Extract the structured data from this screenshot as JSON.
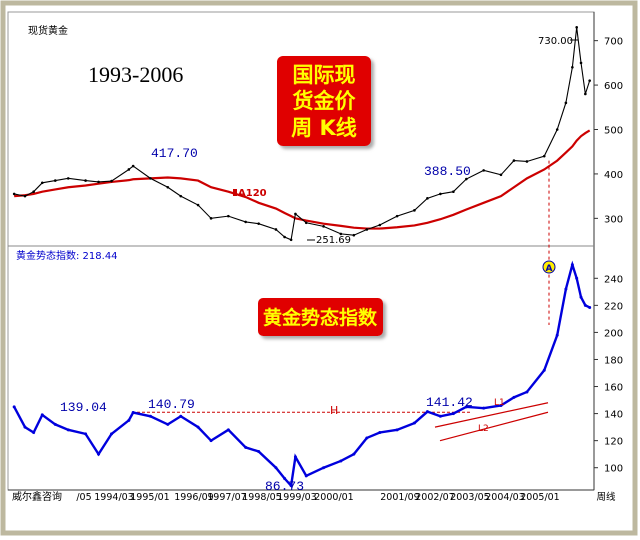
{
  "top_chart": {
    "instrument_label": "现货黄金",
    "period_text": "1993-2006",
    "title_box": [
      "国际现",
      "货金价",
      "周 K线"
    ],
    "ma_label": "A120",
    "annotations": {
      "high_1996": "417.70",
      "low_1999": "251.69",
      "mid_2003": "388.50",
      "high_2006": "730.00"
    },
    "y_ticks": [
      300,
      400,
      500,
      600,
      700
    ]
  },
  "bottom_chart": {
    "header_text": "黄金势态指数: 218.44",
    "title_box": "黄金势态指数",
    "annotations": {
      "start": "139.04",
      "mid_1996": "140.79",
      "low": "86.73",
      "high_2003": "141.42"
    },
    "h_label": "H",
    "l1_label": "L1",
    "l2_label": "L2",
    "marker_label": "A",
    "y_ticks": [
      100,
      120,
      140,
      160,
      180,
      200,
      220,
      240
    ]
  },
  "x_axis": {
    "source_label": "威尔鑫咨询",
    "ticks": [
      "/05",
      "1994/03",
      "1995/01",
      "1996/09",
      "1997/07",
      "1998/05",
      "1999/03",
      "2000/01",
      "2001/09",
      "2002/07",
      "2003/05",
      "2004/03",
      "2005/01",
      "周线"
    ]
  },
  "colors": {
    "price": "#000000",
    "ma": "#cc0000",
    "index": "#0000dd",
    "title_bg": "#e00000",
    "title_text": "#ffff00",
    "annotation_text": "#0000aa",
    "h_line": "#cc0000"
  },
  "chart_data": [
    {
      "type": "line",
      "title": "国际现货金价周 K线",
      "xlabel": "",
      "ylabel": "",
      "ylim": [
        240,
        760
      ],
      "x": [
        1993.35,
        1993.6,
        1993.8,
        1994.0,
        1994.3,
        1994.6,
        1995.0,
        1995.3,
        1995.6,
        1996.0,
        1996.1,
        1996.5,
        1996.9,
        1997.2,
        1997.6,
        1997.9,
        1998.3,
        1998.7,
        1999.0,
        1999.4,
        1999.6,
        1999.75,
        1999.85,
        2000.1,
        2000.5,
        2000.9,
        2001.2,
        2001.5,
        2001.8,
        2002.2,
        2002.6,
        2002.9,
        2003.2,
        2003.5,
        2003.8,
        2004.2,
        2004.6,
        2004.9,
        2005.2,
        2005.6,
        2005.9,
        2006.1,
        2006.25,
        2006.35,
        2006.45,
        2006.55,
        2006.65
      ],
      "series": [
        {
          "name": "现货黄金",
          "values": [
            355,
            350,
            360,
            380,
            385,
            390,
            385,
            382,
            384,
            410,
            417.7,
            390,
            370,
            350,
            330,
            300,
            305,
            292,
            288,
            275,
            258,
            251.69,
            310,
            290,
            282,
            265,
            262,
            275,
            285,
            305,
            318,
            345,
            355,
            360,
            388.5,
            408,
            398,
            430,
            428,
            440,
            500,
            560,
            640,
            730,
            650,
            580,
            610
          ]
        },
        {
          "name": "MA120",
          "values": [
            350,
            352,
            355,
            360,
            365,
            370,
            374,
            378,
            382,
            386,
            388,
            390,
            392,
            390,
            385,
            370,
            360,
            348,
            335,
            322,
            312,
            305,
            300,
            295,
            288,
            283,
            279,
            277,
            277,
            280,
            284,
            290,
            298,
            308,
            320,
            335,
            350,
            370,
            390,
            410,
            430,
            448,
            462,
            475,
            485,
            492,
            498
          ]
        }
      ]
    },
    {
      "type": "line",
      "title": "黄金势态指数",
      "xlabel": "",
      "ylabel": "",
      "ylim": [
        85,
        255
      ],
      "x": [
        1993.35,
        1993.6,
        1993.8,
        1994.0,
        1994.3,
        1994.6,
        1995.0,
        1995.3,
        1995.6,
        1996.0,
        1996.1,
        1996.5,
        1996.9,
        1997.2,
        1997.6,
        1997.9,
        1998.3,
        1998.7,
        1999.0,
        1999.4,
        1999.6,
        1999.75,
        1999.85,
        2000.1,
        2000.5,
        2000.9,
        2001.2,
        2001.5,
        2001.8,
        2002.2,
        2002.6,
        2002.9,
        2003.2,
        2003.5,
        2003.8,
        2004.2,
        2004.6,
        2004.9,
        2005.2,
        2005.6,
        2005.9,
        2006.1,
        2006.25,
        2006.35,
        2006.45,
        2006.55,
        2006.65
      ],
      "series": [
        {
          "name": "黄金势态指数",
          "values": [
            145,
            130,
            126,
            139.04,
            132,
            128,
            125,
            110,
            125,
            135,
            140.79,
            138,
            132,
            138,
            130,
            120,
            128,
            115,
            112,
            100,
            92,
            86.73,
            108,
            94,
            100,
            105,
            110,
            122,
            126,
            128,
            133,
            141.42,
            138,
            140,
            145,
            144,
            146,
            152,
            156,
            172,
            198,
            232,
            250,
            240,
            226,
            220,
            218.44
          ]
        }
      ]
    }
  ]
}
